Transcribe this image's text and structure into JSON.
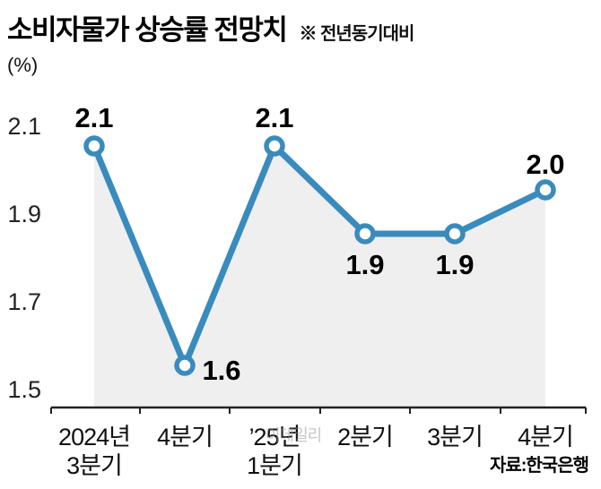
{
  "header": {
    "title": "소비자물가 상승률 전망치",
    "note": "※ 전년동기대비"
  },
  "chart_data": {
    "type": "line",
    "title": "소비자물가 상승률 전망치",
    "subtitle": "※ 전년동기대비",
    "unit_label": "(%)",
    "categories": [
      [
        "2024년",
        "3분기"
      ],
      [
        "4분기"
      ],
      [
        "’25년",
        "1분기"
      ],
      [
        "2분기"
      ],
      [
        "3분기"
      ],
      [
        "4분기"
      ]
    ],
    "values": [
      2.1,
      1.6,
      2.1,
      1.9,
      1.9,
      2.0
    ],
    "data_labels": [
      "2.1",
      "1.6",
      "2.1",
      "1.9",
      "1.9",
      "2.0"
    ],
    "y_ticks": [
      2.1,
      1.9,
      1.7,
      1.5
    ],
    "ylim": [
      1.5,
      2.2
    ],
    "xlabel": "",
    "ylabel": "(%)",
    "grid": false,
    "legend_position": "none",
    "line_color": "#3a8bbd",
    "marker_fill": "#ffffff",
    "area_fill": "#efefef",
    "axis_color": "#222222"
  },
  "footer": {
    "source": "자료:한국은행"
  },
  "watermark": "이데일리"
}
